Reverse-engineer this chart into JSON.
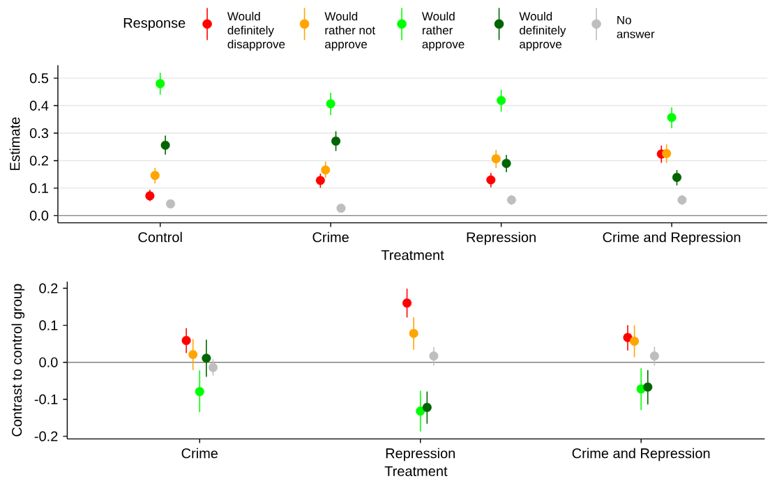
{
  "chart_data": [
    {
      "type": "scatter",
      "categories": [
        "Control",
        "Crime",
        "Repression",
        "Crime and Repression"
      ],
      "xlabel": "Treatment",
      "ylabel": "Estimate",
      "legend_title": "Response",
      "legend": "top",
      "grid": "y",
      "marker": "circle",
      "ylim": [
        -0.026,
        0.547
      ],
      "yticks": [
        {
          "value": 0,
          "label": "0.0"
        },
        0.1,
        0.2,
        0.3,
        0.4,
        0.5
      ],
      "ref_lines": [
        {
          "axis": "y",
          "value": 0,
          "color": "#808080"
        }
      ],
      "series": [
        {
          "name": "Would definitely disapprove",
          "color": "#ff0000",
          "values": [
            0.072,
            0.128,
            0.13,
            0.224
          ],
          "errors": [
            [
              0.053,
              0.094
            ],
            [
              0.101,
              0.153
            ],
            [
              0.103,
              0.155
            ],
            [
              0.192,
              0.255
            ]
          ]
        },
        {
          "name": "Would rather not approve",
          "color": "#ffa500",
          "values": [
            0.146,
            0.166,
            0.207,
            0.226
          ],
          "errors": [
            [
              0.117,
              0.174
            ],
            [
              0.138,
              0.197
            ],
            [
              0.173,
              0.239
            ],
            [
              0.192,
              0.259
            ]
          ]
        },
        {
          "name": "Would rather approve",
          "color": "#00ff00",
          "values": [
            0.48,
            0.407,
            0.419,
            0.357
          ],
          "errors": [
            [
              0.44,
              0.52
            ],
            [
              0.366,
              0.447
            ],
            [
              0.378,
              0.458
            ],
            [
              0.318,
              0.394
            ]
          ]
        },
        {
          "name": "Would definitely approve",
          "color": "#006400",
          "values": [
            0.256,
            0.271,
            0.19,
            0.139
          ],
          "errors": [
            [
              0.222,
              0.291
            ],
            [
              0.235,
              0.307
            ],
            [
              0.158,
              0.221
            ],
            [
              0.11,
              0.166
            ]
          ]
        },
        {
          "name": "No answer",
          "color": "#bebebe",
          "values": [
            0.043,
            0.027,
            0.057,
            0.057
          ],
          "errors": [
            null,
            null,
            [
              0.039,
              0.075
            ],
            [
              0.039,
              0.075
            ]
          ]
        }
      ]
    },
    {
      "type": "scatter",
      "categories": [
        "Crime",
        "Repression",
        "Crime and Repression"
      ],
      "xlabel": "Treatment",
      "ylabel": "Contrast to control group",
      "marker": "circle",
      "ylim": [
        -0.207,
        0.218
      ],
      "yticks": [
        -0.2,
        -0.1,
        {
          "value": 0,
          "label": "0.0"
        },
        0.1,
        0.2
      ],
      "ref_lines": [
        {
          "axis": "y",
          "value": 0,
          "color": "#808080"
        }
      ],
      "series": [
        {
          "color": "#ff0000",
          "values": [
            0.059,
            0.16,
            0.067
          ],
          "errors": [
            [
              0.025,
              0.092
            ],
            [
              0.121,
              0.199
            ],
            [
              0.032,
              0.1
            ]
          ]
        },
        {
          "color": "#ffa500",
          "values": [
            0.021,
            0.078,
            0.057
          ],
          "errors": [
            [
              -0.021,
              0.063
            ],
            [
              0.034,
              0.122
            ],
            [
              0.014,
              0.1
            ]
          ]
        },
        {
          "color": "#00ff00",
          "values": [
            -0.079,
            -0.132,
            -0.072
          ],
          "errors": [
            [
              -0.135,
              -0.022
            ],
            [
              -0.187,
              -0.077
            ],
            [
              -0.129,
              -0.016
            ]
          ]
        },
        {
          "color": "#006400",
          "values": [
            0.011,
            -0.122,
            -0.067
          ],
          "errors": [
            [
              -0.039,
              0.061
            ],
            [
              -0.166,
              -0.079
            ],
            [
              -0.114,
              -0.021
            ]
          ]
        },
        {
          "color": "#bebebe",
          "values": [
            -0.014,
            0.017,
            0.017
          ],
          "errors": [
            [
              -0.036,
              0.008
            ],
            [
              -0.009,
              0.041
            ],
            [
              -0.009,
              0.042
            ]
          ]
        }
      ]
    }
  ]
}
